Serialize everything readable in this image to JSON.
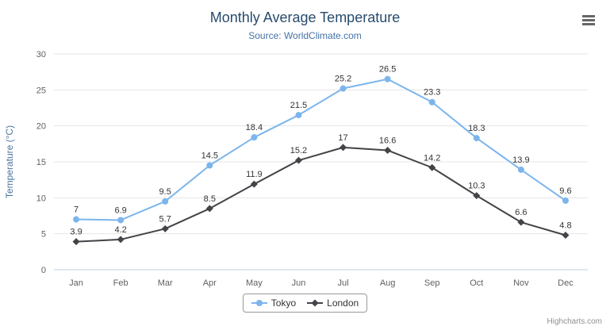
{
  "title": "Monthly Average Temperature",
  "subtitle": "Source: WorldClimate.com",
  "credits": "Highcharts.com",
  "menu_icon": "hamburger-icon",
  "colors": {
    "title": "#274b6d",
    "subtitle": "#4572a7",
    "axis_title": "#4d759e",
    "tick_label": "#606060",
    "grid": "#e6e6e6",
    "axis_line": "#c0d0e0",
    "data_label": "#333333",
    "legend_border": "#999999",
    "legend_text": "#333333",
    "credits": "#909090"
  },
  "chart_data": {
    "type": "line",
    "title": "Monthly Average Temperature",
    "subtitle": "Source: WorldClimate.com",
    "categories": [
      "Jan",
      "Feb",
      "Mar",
      "Apr",
      "May",
      "Jun",
      "Jul",
      "Aug",
      "Sep",
      "Oct",
      "Nov",
      "Dec"
    ],
    "series": [
      {
        "name": "Tokyo",
        "color": "#7cb5ec",
        "marker": "circle",
        "values": [
          7,
          6.9,
          9.5,
          14.5,
          18.4,
          21.5,
          25.2,
          26.5,
          23.3,
          18.3,
          13.9,
          9.6
        ]
      },
      {
        "name": "London",
        "color": "#434348",
        "marker": "diamond",
        "values": [
          3.9,
          4.2,
          5.7,
          8.5,
          11.9,
          15.2,
          17,
          16.6,
          14.2,
          10.3,
          6.6,
          4.8
        ]
      }
    ],
    "xlabel": "",
    "ylabel": "Temperature (°C)",
    "ylim": [
      0,
      30
    ],
    "ytick_interval": 5,
    "grid": true,
    "legend_position": "bottom-center",
    "data_labels": true
  }
}
